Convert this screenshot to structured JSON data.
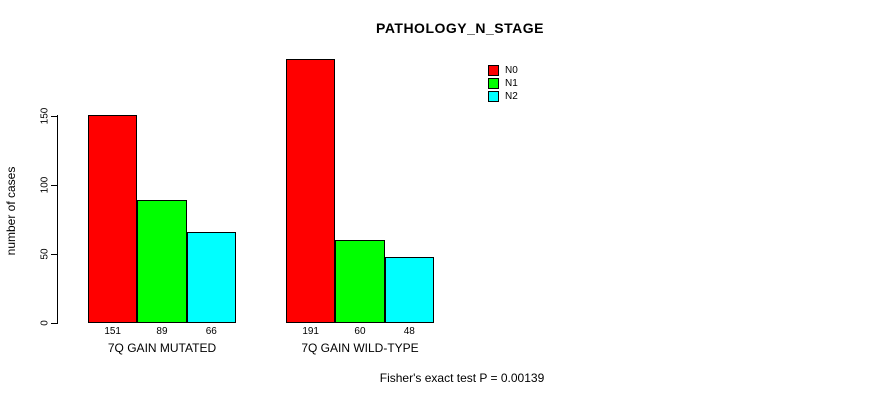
{
  "title": "PATHOLOGY_N_STAGE",
  "ylabel": "number of cases",
  "footer": "Fisher's exact test P = 0.00139",
  "chart_data": {
    "type": "bar",
    "grouped": true,
    "title": "PATHOLOGY_N_STAGE",
    "xlabel": "",
    "ylabel": "number of cases",
    "categories": [
      "7Q GAIN MUTATED",
      "7Q GAIN WILD-TYPE"
    ],
    "series": [
      {
        "name": "N0",
        "color": "#FF0000",
        "values": [
          151,
          191
        ]
      },
      {
        "name": "N1",
        "color": "#00FF00",
        "values": [
          89,
          60
        ]
      },
      {
        "name": "N2",
        "color": "#00FFFF",
        "values": [
          66,
          48
        ]
      }
    ],
    "yticks": [
      0,
      50,
      100,
      150
    ],
    "ylim": [
      0,
      195
    ],
    "grid": false,
    "legend_position": "top-right",
    "bar_value_labels_shown": true,
    "annotation": "Fisher's exact test P = 0.00139"
  }
}
